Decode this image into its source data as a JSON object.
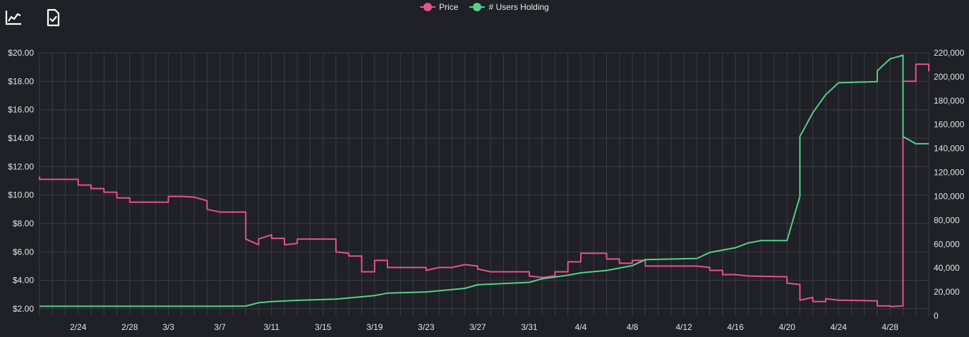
{
  "toolbar": {
    "icons": [
      {
        "name": "line-chart-icon"
      },
      {
        "name": "export-document-icon"
      }
    ]
  },
  "colors": {
    "background": "#1f2126",
    "grid": "#3a3d44",
    "price": "#e8508f",
    "users": "#54d08a",
    "text": "#e4e4e4"
  },
  "chart_data": {
    "type": "line",
    "legend_position": "top-center",
    "grid": true,
    "x_axis": {
      "type": "date",
      "range": [
        "2022-02-21",
        "2022-05-01"
      ],
      "ticks": [
        "2/24",
        "2/28",
        "3/3",
        "3/7",
        "3/11",
        "3/15",
        "3/19",
        "3/23",
        "3/27",
        "3/31",
        "4/4",
        "4/8",
        "4/12",
        "4/16",
        "4/20",
        "4/24",
        "4/28"
      ]
    },
    "y_left": {
      "range": [
        1.5,
        20.0
      ],
      "ticks": [
        "$2.00",
        "$4.00",
        "$6.00",
        "$8.00",
        "$10.00",
        "$12.00",
        "$14.00",
        "$16.00",
        "$18.00",
        "$20.00"
      ]
    },
    "y_right": {
      "range": [
        0,
        220000
      ],
      "ticks": [
        "0",
        "20,000",
        "40,000",
        "60,000",
        "80,000",
        "100,000",
        "120,000",
        "140,000",
        "160,000",
        "180,000",
        "200,000",
        "220,000"
      ]
    },
    "series": [
      {
        "name": "Price",
        "axis": "left",
        "color": "#e8508f",
        "points": [
          [
            "2022-02-21",
            11.3
          ],
          [
            "2022-02-21",
            11.1
          ],
          [
            "2022-02-24",
            11.1
          ],
          [
            "2022-02-24",
            10.7
          ],
          [
            "2022-02-25",
            10.7
          ],
          [
            "2022-02-25",
            10.45
          ],
          [
            "2022-02-26",
            10.45
          ],
          [
            "2022-02-26",
            10.2
          ],
          [
            "2022-02-27",
            10.2
          ],
          [
            "2022-02-27",
            9.8
          ],
          [
            "2022-02-28",
            9.8
          ],
          [
            "2022-02-28",
            9.5
          ],
          [
            "2022-03-03",
            9.5
          ],
          [
            "2022-03-03",
            9.9
          ],
          [
            "2022-03-04",
            9.9
          ],
          [
            "2022-03-05",
            9.85
          ],
          [
            "2022-03-06",
            9.6
          ],
          [
            "2022-03-06",
            9.0
          ],
          [
            "2022-03-07",
            8.8
          ],
          [
            "2022-03-09",
            8.8
          ],
          [
            "2022-03-09",
            6.9
          ],
          [
            "2022-03-10",
            6.5
          ],
          [
            "2022-03-10",
            6.9
          ],
          [
            "2022-03-11",
            7.2
          ],
          [
            "2022-03-11",
            6.95
          ],
          [
            "2022-03-12",
            6.95
          ],
          [
            "2022-03-12",
            6.5
          ],
          [
            "2022-03-13",
            6.6
          ],
          [
            "2022-03-13",
            6.9
          ],
          [
            "2022-03-16",
            6.9
          ],
          [
            "2022-03-16",
            6.0
          ],
          [
            "2022-03-17",
            5.9
          ],
          [
            "2022-03-17",
            5.7
          ],
          [
            "2022-03-18",
            5.7
          ],
          [
            "2022-03-18",
            4.6
          ],
          [
            "2022-03-19",
            4.6
          ],
          [
            "2022-03-19",
            5.4
          ],
          [
            "2022-03-20",
            5.4
          ],
          [
            "2022-03-20",
            4.9
          ],
          [
            "2022-03-23",
            4.9
          ],
          [
            "2022-03-23",
            4.7
          ],
          [
            "2022-03-24",
            4.9
          ],
          [
            "2022-03-25",
            4.9
          ],
          [
            "2022-03-26",
            5.1
          ],
          [
            "2022-03-27",
            5.0
          ],
          [
            "2022-03-27",
            4.8
          ],
          [
            "2022-03-28",
            4.6
          ],
          [
            "2022-03-31",
            4.6
          ],
          [
            "2022-03-31",
            4.3
          ],
          [
            "2022-04-01",
            4.2
          ],
          [
            "2022-04-02",
            4.3
          ],
          [
            "2022-04-02",
            4.6
          ],
          [
            "2022-04-03",
            4.6
          ],
          [
            "2022-04-03",
            5.3
          ],
          [
            "2022-04-04",
            5.3
          ],
          [
            "2022-04-04",
            5.9
          ],
          [
            "2022-04-06",
            5.9
          ],
          [
            "2022-04-06",
            5.5
          ],
          [
            "2022-04-07",
            5.5
          ],
          [
            "2022-04-07",
            5.2
          ],
          [
            "2022-04-08",
            5.2
          ],
          [
            "2022-04-08",
            5.4
          ],
          [
            "2022-04-09",
            5.4
          ],
          [
            "2022-04-09",
            5.0
          ],
          [
            "2022-04-13",
            5.0
          ],
          [
            "2022-04-14",
            4.9
          ],
          [
            "2022-04-14",
            4.7
          ],
          [
            "2022-04-15",
            4.7
          ],
          [
            "2022-04-15",
            4.4
          ],
          [
            "2022-04-16",
            4.4
          ],
          [
            "2022-04-17",
            4.3
          ],
          [
            "2022-04-20",
            4.25
          ],
          [
            "2022-04-20",
            3.8
          ],
          [
            "2022-04-21",
            3.7
          ],
          [
            "2022-04-21",
            2.6
          ],
          [
            "2022-04-22",
            2.8
          ],
          [
            "2022-04-22",
            2.5
          ],
          [
            "2022-04-23",
            2.5
          ],
          [
            "2022-04-23",
            2.7
          ],
          [
            "2022-04-24",
            2.6
          ],
          [
            "2022-04-27",
            2.55
          ],
          [
            "2022-04-27",
            2.2
          ],
          [
            "2022-04-28",
            2.2
          ],
          [
            "2022-04-28",
            2.15
          ],
          [
            "2022-04-29",
            2.2
          ],
          [
            "2022-04-29",
            18.0
          ],
          [
            "2022-04-30",
            18.0
          ],
          [
            "2022-04-30",
            19.2
          ],
          [
            "2022-05-01",
            19.2
          ],
          [
            "2022-05-01",
            18.7
          ]
        ]
      },
      {
        "name": "# Users Holding",
        "axis": "right",
        "color": "#54d08a",
        "points": [
          [
            "2022-02-21",
            8000
          ],
          [
            "2022-03-07",
            8000
          ],
          [
            "2022-03-09",
            8200
          ],
          [
            "2022-03-10",
            11000
          ],
          [
            "2022-03-11",
            12000
          ],
          [
            "2022-03-13",
            13000
          ],
          [
            "2022-03-16",
            14000
          ],
          [
            "2022-03-19",
            17000
          ],
          [
            "2022-03-20",
            19000
          ],
          [
            "2022-03-23",
            20000
          ],
          [
            "2022-03-26",
            23000
          ],
          [
            "2022-03-27",
            26000
          ],
          [
            "2022-03-31",
            28000
          ],
          [
            "2022-04-01",
            31000
          ],
          [
            "2022-04-03",
            34000
          ],
          [
            "2022-04-04",
            36000
          ],
          [
            "2022-04-06",
            38000
          ],
          [
            "2022-04-08",
            42000
          ],
          [
            "2022-04-09",
            47000
          ],
          [
            "2022-04-13",
            48000
          ],
          [
            "2022-04-14",
            53000
          ],
          [
            "2022-04-16",
            57000
          ],
          [
            "2022-04-17",
            61000
          ],
          [
            "2022-04-18",
            63000
          ],
          [
            "2022-04-20",
            63000
          ],
          [
            "2022-04-21",
            100000
          ],
          [
            "2022-04-21",
            150000
          ],
          [
            "2022-04-22",
            170000
          ],
          [
            "2022-04-23",
            185000
          ],
          [
            "2022-04-24",
            195000
          ],
          [
            "2022-04-27",
            196000
          ],
          [
            "2022-04-27",
            205000
          ],
          [
            "2022-04-28",
            215000
          ],
          [
            "2022-04-29",
            218000
          ],
          [
            "2022-04-29",
            150000
          ],
          [
            "2022-04-30",
            144000
          ],
          [
            "2022-05-01",
            144000
          ]
        ]
      }
    ]
  }
}
